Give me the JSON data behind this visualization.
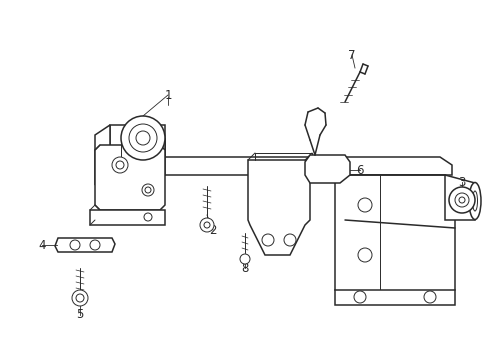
{
  "bg_color": "#ffffff",
  "line_color": "#2a2a2a",
  "lw_main": 1.1,
  "lw_thin": 0.7,
  "lw_hair": 0.5,
  "fig_width": 4.9,
  "fig_height": 3.6,
  "dpi": 100,
  "label_fontsize": 8.5
}
